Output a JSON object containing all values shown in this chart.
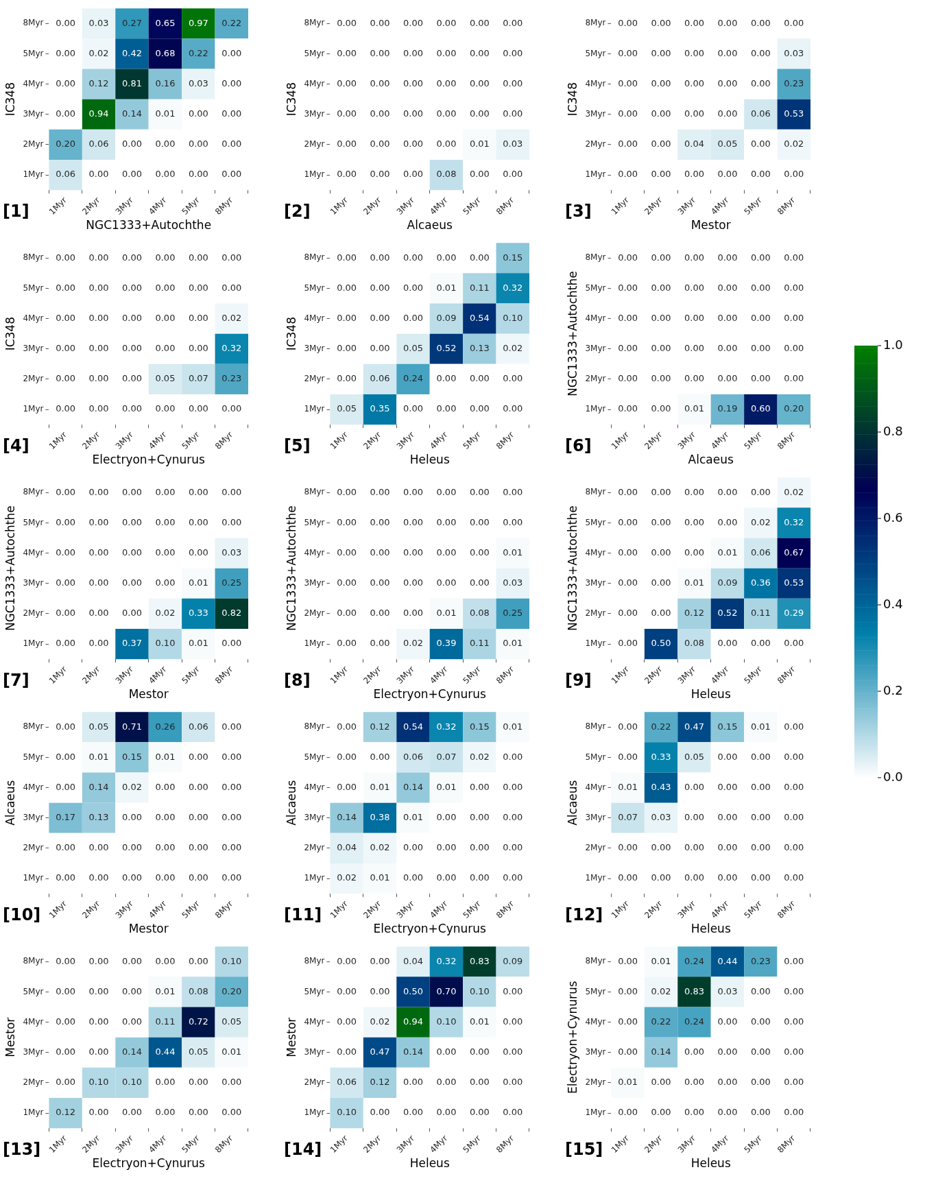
{
  "chart_data": [
    {
      "type": "heatmap",
      "ylabel": "IC348",
      "xlabel": "NGC1333+Autochthe",
      "annotations": [
        "[1]"
      ],
      "categories": [
        "1Myr",
        "2Myr",
        "3Myr",
        "4Myr",
        "5Myr",
        "8Myr"
      ],
      "y_categories": [
        "8Myr",
        "5Myr",
        "4Myr",
        "3Myr",
        "2Myr",
        "1Myr"
      ],
      "cells": [
        [
          0.0,
          0.03,
          0.27,
          0.65,
          0.97,
          0.22
        ],
        [
          0.0,
          0.02,
          0.42,
          0.68,
          0.22,
          0.0
        ],
        [
          0.0,
          0.12,
          0.81,
          0.16,
          0.03,
          0.0
        ],
        [
          0.0,
          0.94,
          0.14,
          0.01,
          0.0,
          0.0
        ],
        [
          0.2,
          0.06,
          0.0,
          0.0,
          0.0,
          0.0
        ],
        [
          0.06,
          0.0,
          0.0,
          0.0,
          0.0,
          0.0
        ]
      ],
      "cell_labels": [
        [
          "0.00",
          "0.03",
          "0.27",
          "0.65",
          "0.97",
          "0.22"
        ],
        [
          "0.00",
          "0.02",
          "0.42",
          "0.68",
          "0.22",
          "0.00"
        ],
        [
          "0.00",
          "0.12",
          "0.81",
          "0.16",
          "0.03",
          "0.00"
        ],
        [
          "0.00",
          "0.94",
          "0.14",
          "0.01",
          "0.00",
          "0.00"
        ],
        [
          "0.20",
          "0.06",
          "0.00",
          "0.00",
          "0.00",
          "0.00"
        ],
        [
          "0.06",
          "0.00",
          "0.00",
          "0.00",
          "0.00",
          "0.00"
        ]
      ]
    },
    {
      "type": "heatmap",
      "ylabel": "IC348",
      "xlabel": "Alcaeus",
      "annotations": [
        "[2]"
      ],
      "categories": [
        "1Myr",
        "2Myr",
        "3Myr",
        "4Myr",
        "5Myr",
        "8Myr"
      ],
      "y_categories": [
        "8Myr",
        "5Myr",
        "4Myr",
        "3Myr",
        "2Myr",
        "1Myr"
      ],
      "cells": [
        [
          0.0,
          0.0,
          0.0,
          0.0,
          0.0,
          0.0
        ],
        [
          0.0,
          0.0,
          0.0,
          0.0,
          0.0,
          0.0
        ],
        [
          0.0,
          0.0,
          0.0,
          0.0,
          0.0,
          0.0
        ],
        [
          0.0,
          0.0,
          0.0,
          0.0,
          0.0,
          0.0
        ],
        [
          0.0,
          0.0,
          0.0,
          0.0,
          0.01,
          0.03
        ],
        [
          0.0,
          0.0,
          0.0,
          0.08,
          0.0,
          0.0
        ]
      ],
      "cell_labels": [
        [
          "0.00",
          "0.00",
          "0.00",
          "0.00",
          "0.00",
          "0.00"
        ],
        [
          "0.00",
          "0.00",
          "0.00",
          "0.00",
          "0.00",
          "0.00"
        ],
        [
          "0.00",
          "0.00",
          "0.00",
          "0.00",
          "0.00",
          "0.00"
        ],
        [
          "0.00",
          "0.00",
          "0.00",
          "0.00",
          "0.00",
          "0.00"
        ],
        [
          "0.00",
          "0.00",
          "0.00",
          "0.00",
          "0.01",
          "0.03"
        ],
        [
          "0.00",
          "0.00",
          "0.00",
          "0.08",
          "0.00",
          "0.00"
        ]
      ]
    },
    {
      "type": "heatmap",
      "ylabel": "IC348",
      "xlabel": "Mestor",
      "annotations": [
        "[3]"
      ],
      "categories": [
        "1Myr",
        "2Myr",
        "3Myr",
        "4Myr",
        "5Myr",
        "8Myr"
      ],
      "y_categories": [
        "8Myr",
        "5Myr",
        "4Myr",
        "3Myr",
        "2Myr",
        "1Myr"
      ],
      "cells": [
        [
          0.0,
          0.0,
          0.0,
          0.0,
          0.0,
          0.0
        ],
        [
          0.0,
          0.0,
          0.0,
          0.0,
          0.0,
          0.03
        ],
        [
          0.0,
          0.0,
          0.0,
          0.0,
          0.0,
          0.23
        ],
        [
          0.0,
          0.0,
          0.0,
          0.0,
          0.06,
          0.53
        ],
        [
          0.0,
          0.0,
          0.04,
          0.05,
          0.0,
          0.02
        ],
        [
          0.0,
          0.0,
          0.0,
          0.0,
          0.0,
          0.0
        ]
      ],
      "cell_labels": [
        [
          "0.00",
          "0.00",
          "0.00",
          "0.00",
          "0.00",
          "0.00"
        ],
        [
          "0.00",
          "0.00",
          "0.00",
          "0.00",
          "0.00",
          "0.03"
        ],
        [
          "0.00",
          "0.00",
          "0.00",
          "0.00",
          "0.00",
          "0.23"
        ],
        [
          "0.00",
          "0.00",
          "0.00",
          "0.00",
          "0.06",
          "0.53"
        ],
        [
          "0.00",
          "0.00",
          "0.04",
          "0.05",
          "0.00",
          "0.02"
        ],
        [
          "0.00",
          "0.00",
          "0.00",
          "0.00",
          "0.00",
          "0.00"
        ]
      ]
    },
    {
      "type": "heatmap",
      "ylabel": "IC348",
      "xlabel": "Electryon+Cynurus",
      "annotations": [
        "[4]"
      ],
      "categories": [
        "1Myr",
        "2Myr",
        "3Myr",
        "4Myr",
        "5Myr",
        "8Myr"
      ],
      "y_categories": [
        "8Myr",
        "5Myr",
        "4Myr",
        "3Myr",
        "2Myr",
        "1Myr"
      ],
      "cells": [
        [
          0.0,
          0.0,
          0.0,
          0.0,
          0.0,
          0.0
        ],
        [
          0.0,
          0.0,
          0.0,
          0.0,
          0.0,
          0.0
        ],
        [
          0.0,
          0.0,
          0.0,
          0.0,
          0.0,
          0.02
        ],
        [
          0.0,
          0.0,
          0.0,
          0.0,
          0.0,
          0.32
        ],
        [
          0.0,
          0.0,
          0.0,
          0.05,
          0.07,
          0.23
        ],
        [
          0.0,
          0.0,
          0.0,
          0.0,
          0.0,
          0.0
        ]
      ],
      "cell_labels": [
        [
          "0.00",
          "0.00",
          "0.00",
          "0.00",
          "0.00",
          "0.00"
        ],
        [
          "0.00",
          "0.00",
          "0.00",
          "0.00",
          "0.00",
          "0.00"
        ],
        [
          "0.00",
          "0.00",
          "0.00",
          "0.00",
          "0.00",
          "0.02"
        ],
        [
          "0.00",
          "0.00",
          "0.00",
          "0.00",
          "0.00",
          "0.32"
        ],
        [
          "0.00",
          "0.00",
          "0.00",
          "0.05",
          "0.07",
          "0.23"
        ],
        [
          "0.00",
          "0.00",
          "0.00",
          "0.00",
          "0.00",
          "0.00"
        ]
      ]
    },
    {
      "type": "heatmap",
      "ylabel": "IC348",
      "xlabel": "Heleus",
      "annotations": [
        "[5]"
      ],
      "categories": [
        "1Myr",
        "2Myr",
        "3Myr",
        "4Myr",
        "5Myr",
        "8Myr"
      ],
      "y_categories": [
        "8Myr",
        "5Myr",
        "4Myr",
        "3Myr",
        "2Myr",
        "1Myr"
      ],
      "cells": [
        [
          0.0,
          0.0,
          0.0,
          0.0,
          0.0,
          0.15
        ],
        [
          0.0,
          0.0,
          0.0,
          0.01,
          0.11,
          0.32
        ],
        [
          0.0,
          0.0,
          0.0,
          0.09,
          0.54,
          0.1
        ],
        [
          0.0,
          0.0,
          0.05,
          0.52,
          0.13,
          0.02
        ],
        [
          0.0,
          0.06,
          0.24,
          0.0,
          0.0,
          0.0
        ],
        [
          0.05,
          0.35,
          0.0,
          0.0,
          0.0,
          0.0
        ]
      ],
      "cell_labels": [
        [
          "0.00",
          "0.00",
          "0.00",
          "0.00",
          "0.00",
          "0.15"
        ],
        [
          "0.00",
          "0.00",
          "0.00",
          "0.01",
          "0.11",
          "0.32"
        ],
        [
          "0.00",
          "0.00",
          "0.00",
          "0.09",
          "0.54",
          "0.10"
        ],
        [
          "0.00",
          "0.00",
          "0.05",
          "0.52",
          "0.13",
          "0.02"
        ],
        [
          "0.00",
          "0.06",
          "0.24",
          "0.00",
          "0.00",
          "0.00"
        ],
        [
          "0.05",
          "0.35",
          "0.00",
          "0.00",
          "0.00",
          "0.00"
        ]
      ]
    },
    {
      "type": "heatmap",
      "ylabel": "NGC1333+Autochthe",
      "xlabel": "Alcaeus",
      "annotations": [
        "[6]"
      ],
      "categories": [
        "1Myr",
        "2Myr",
        "3Myr",
        "4Myr",
        "5Myr",
        "8Myr"
      ],
      "y_categories": [
        "8Myr",
        "5Myr",
        "4Myr",
        "3Myr",
        "2Myr",
        "1Myr"
      ],
      "clim": [
        0,
        1
      ],
      "cticks": [
        {
          "value": 0,
          "label": "0.0"
        },
        0.2,
        0.4,
        0.6,
        0.8,
        {
          "value": 1,
          "label": "1.0"
        }
      ],
      "cells": [
        [
          0.0,
          0.0,
          0.0,
          0.0,
          0.0,
          0.0
        ],
        [
          0.0,
          0.0,
          0.0,
          0.0,
          0.0,
          0.0
        ],
        [
          0.0,
          0.0,
          0.0,
          0.0,
          0.0,
          0.0
        ],
        [
          0.0,
          0.0,
          0.0,
          0.0,
          0.0,
          0.0
        ],
        [
          0.0,
          0.0,
          0.0,
          0.0,
          0.0,
          0.0
        ],
        [
          0.0,
          0.0,
          0.01,
          0.19,
          0.6,
          0.2
        ]
      ],
      "cell_labels": [
        [
          "0.00",
          "0.00",
          "0.00",
          "0.00",
          "0.00",
          "0.00"
        ],
        [
          "0.00",
          "0.00",
          "0.00",
          "0.00",
          "0.00",
          "0.00"
        ],
        [
          "0.00",
          "0.00",
          "0.00",
          "0.00",
          "0.00",
          "0.00"
        ],
        [
          "0.00",
          "0.00",
          "0.00",
          "0.00",
          "0.00",
          "0.00"
        ],
        [
          "0.00",
          "0.00",
          "0.00",
          "0.00",
          "0.00",
          "0.00"
        ],
        [
          "0.00",
          "0.00",
          "0.01",
          "0.19",
          "0.60",
          "0.20"
        ]
      ]
    },
    {
      "type": "heatmap",
      "ylabel": "NGC1333+Autochthe",
      "xlabel": "Mestor",
      "annotations": [
        "[7]"
      ],
      "categories": [
        "1Myr",
        "2Myr",
        "3Myr",
        "4Myr",
        "5Myr",
        "8Myr"
      ],
      "y_categories": [
        "8Myr",
        "5Myr",
        "4Myr",
        "3Myr",
        "2Myr",
        "1Myr"
      ],
      "cells": [
        [
          0.0,
          0.0,
          0.0,
          0.0,
          0.0,
          0.0
        ],
        [
          0.0,
          0.0,
          0.0,
          0.0,
          0.0,
          0.0
        ],
        [
          0.0,
          0.0,
          0.0,
          0.0,
          0.0,
          0.03
        ],
        [
          0.0,
          0.0,
          0.0,
          0.0,
          0.01,
          0.25
        ],
        [
          0.0,
          0.0,
          0.0,
          0.02,
          0.33,
          0.82
        ],
        [
          0.0,
          0.0,
          0.37,
          0.1,
          0.01,
          0.0
        ]
      ],
      "cell_labels": [
        [
          "0.00",
          "0.00",
          "0.00",
          "0.00",
          "0.00",
          "0.00"
        ],
        [
          "0.00",
          "0.00",
          "0.00",
          "0.00",
          "0.00",
          "0.00"
        ],
        [
          "0.00",
          "0.00",
          "0.00",
          "0.00",
          "0.00",
          "0.03"
        ],
        [
          "0.00",
          "0.00",
          "0.00",
          "0.00",
          "0.01",
          "0.25"
        ],
        [
          "0.00",
          "0.00",
          "0.00",
          "0.02",
          "0.33",
          "0.82"
        ],
        [
          "0.00",
          "0.00",
          "0.37",
          "0.10",
          "0.01",
          "0.00"
        ]
      ]
    },
    {
      "type": "heatmap",
      "ylabel": "NGC1333+Autochthe",
      "xlabel": "Electryon+Cynurus",
      "annotations": [
        "[8]"
      ],
      "categories": [
        "1Myr",
        "2Myr",
        "3Myr",
        "4Myr",
        "5Myr",
        "8Myr"
      ],
      "y_categories": [
        "8Myr",
        "5Myr",
        "4Myr",
        "3Myr",
        "2Myr",
        "1Myr"
      ],
      "cells": [
        [
          0.0,
          0.0,
          0.0,
          0.0,
          0.0,
          0.0
        ],
        [
          0.0,
          0.0,
          0.0,
          0.0,
          0.0,
          0.0
        ],
        [
          0.0,
          0.0,
          0.0,
          0.0,
          0.0,
          0.01
        ],
        [
          0.0,
          0.0,
          0.0,
          0.0,
          0.0,
          0.03
        ],
        [
          0.0,
          0.0,
          0.0,
          0.01,
          0.08,
          0.25
        ],
        [
          0.0,
          0.0,
          0.02,
          0.39,
          0.11,
          0.01
        ]
      ],
      "cell_labels": [
        [
          "0.00",
          "0.00",
          "0.00",
          "0.00",
          "0.00",
          "0.00"
        ],
        [
          "0.00",
          "0.00",
          "0.00",
          "0.00",
          "0.00",
          "0.00"
        ],
        [
          "0.00",
          "0.00",
          "0.00",
          "0.00",
          "0.00",
          "0.01"
        ],
        [
          "0.00",
          "0.00",
          "0.00",
          "0.00",
          "0.00",
          "0.03"
        ],
        [
          "0.00",
          "0.00",
          "0.00",
          "0.01",
          "0.08",
          "0.25"
        ],
        [
          "0.00",
          "0.00",
          "0.02",
          "0.39",
          "0.11",
          "0.01"
        ]
      ]
    },
    {
      "type": "heatmap",
      "ylabel": "NGC1333+Autochthe",
      "xlabel": "Heleus",
      "annotations": [
        "[9]"
      ],
      "categories": [
        "1Myr",
        "2Myr",
        "3Myr",
        "4Myr",
        "5Myr",
        "8Myr"
      ],
      "y_categories": [
        "8Myr",
        "5Myr",
        "4Myr",
        "3Myr",
        "2Myr",
        "1Myr"
      ],
      "cells": [
        [
          0.0,
          0.0,
          0.0,
          0.0,
          0.0,
          0.02
        ],
        [
          0.0,
          0.0,
          0.0,
          0.0,
          0.02,
          0.32
        ],
        [
          0.0,
          0.0,
          0.0,
          0.01,
          0.06,
          0.67
        ],
        [
          0.0,
          0.0,
          0.01,
          0.09,
          0.36,
          0.53
        ],
        [
          0.0,
          0.0,
          0.12,
          0.52,
          0.11,
          0.29
        ],
        [
          0.0,
          0.5,
          0.08,
          0.0,
          0.0,
          0.0
        ]
      ],
      "cell_labels": [
        [
          "0.00",
          "0.00",
          "0.00",
          "0.00",
          "0.00",
          "0.02"
        ],
        [
          "0.00",
          "0.00",
          "0.00",
          "0.00",
          "0.02",
          "0.32"
        ],
        [
          "0.00",
          "0.00",
          "0.00",
          "0.01",
          "0.06",
          "0.67"
        ],
        [
          "0.00",
          "0.00",
          "0.01",
          "0.09",
          "0.36",
          "0.53"
        ],
        [
          "0.00",
          "0.00",
          "0.12",
          "0.52",
          "0.11",
          "0.29"
        ],
        [
          "0.00",
          "0.50",
          "0.08",
          "0.00",
          "0.00",
          "0.00"
        ]
      ]
    },
    {
      "type": "heatmap",
      "ylabel": "Alcaeus",
      "xlabel": "Mestor",
      "annotations": [
        "[10]"
      ],
      "categories": [
        "1Myr",
        "2Myr",
        "3Myr",
        "4Myr",
        "5Myr",
        "8Myr"
      ],
      "y_categories": [
        "8Myr",
        "5Myr",
        "4Myr",
        "3Myr",
        "2Myr",
        "1Myr"
      ],
      "cells": [
        [
          0.0,
          0.05,
          0.71,
          0.26,
          0.06,
          0.0
        ],
        [
          0.0,
          0.01,
          0.15,
          0.01,
          0.0,
          0.0
        ],
        [
          0.0,
          0.14,
          0.02,
          0.0,
          0.0,
          0.0
        ],
        [
          0.17,
          0.13,
          0.0,
          0.0,
          0.0,
          0.0
        ],
        [
          0.0,
          0.0,
          0.0,
          0.0,
          0.0,
          0.0
        ],
        [
          0.0,
          0.0,
          0.0,
          0.0,
          0.0,
          0.0
        ]
      ],
      "cell_labels": [
        [
          "0.00",
          "0.05",
          "0.71",
          "0.26",
          "0.06",
          "0.00"
        ],
        [
          "0.00",
          "0.01",
          "0.15",
          "0.01",
          "0.00",
          "0.00"
        ],
        [
          "0.00",
          "0.14",
          "0.02",
          "0.00",
          "0.00",
          "0.00"
        ],
        [
          "0.17",
          "0.13",
          "0.00",
          "0.00",
          "0.00",
          "0.00"
        ],
        [
          "0.00",
          "0.00",
          "0.00",
          "0.00",
          "0.00",
          "0.00"
        ],
        [
          "0.00",
          "0.00",
          "0.00",
          "0.00",
          "0.00",
          "0.00"
        ]
      ]
    },
    {
      "type": "heatmap",
      "ylabel": "Alcaeus",
      "xlabel": "Electryon+Cynurus",
      "annotations": [
        "[11]"
      ],
      "categories": [
        "1Myr",
        "2Myr",
        "3Myr",
        "4Myr",
        "5Myr",
        "8Myr"
      ],
      "y_categories": [
        "8Myr",
        "5Myr",
        "4Myr",
        "3Myr",
        "2Myr",
        "1Myr"
      ],
      "cells": [
        [
          0.0,
          0.12,
          0.54,
          0.32,
          0.15,
          0.01
        ],
        [
          0.0,
          0.0,
          0.06,
          0.07,
          0.02,
          0.0
        ],
        [
          0.0,
          0.01,
          0.14,
          0.01,
          0.0,
          0.0
        ],
        [
          0.14,
          0.38,
          0.01,
          0.0,
          0.0,
          0.0
        ],
        [
          0.04,
          0.02,
          0.0,
          0.0,
          0.0,
          0.0
        ],
        [
          0.02,
          0.01,
          0.0,
          0.0,
          0.0,
          0.0
        ]
      ],
      "cell_labels": [
        [
          "0.00",
          "0.12",
          "0.54",
          "0.32",
          "0.15",
          "0.01"
        ],
        [
          "0.00",
          "0.00",
          "0.06",
          "0.07",
          "0.02",
          "0.00"
        ],
        [
          "0.00",
          "0.01",
          "0.14",
          "0.01",
          "0.00",
          "0.00"
        ],
        [
          "0.14",
          "0.38",
          "0.01",
          "0.00",
          "0.00",
          "0.00"
        ],
        [
          "0.04",
          "0.02",
          "0.00",
          "0.00",
          "0.00",
          "0.00"
        ],
        [
          "0.02",
          "0.01",
          "0.00",
          "0.00",
          "0.00",
          "0.00"
        ]
      ]
    },
    {
      "type": "heatmap",
      "ylabel": "Alcaeus",
      "xlabel": "Heleus",
      "annotations": [
        "[12]"
      ],
      "categories": [
        "1Myr",
        "2Myr",
        "3Myr",
        "4Myr",
        "5Myr",
        "8Myr"
      ],
      "y_categories": [
        "8Myr",
        "5Myr",
        "4Myr",
        "3Myr",
        "2Myr",
        "1Myr"
      ],
      "cells": [
        [
          0.0,
          0.22,
          0.47,
          0.15,
          0.01,
          0.0
        ],
        [
          0.0,
          0.33,
          0.05,
          0.0,
          0.0,
          0.0
        ],
        [
          0.01,
          0.43,
          0.0,
          0.0,
          0.0,
          0.0
        ],
        [
          0.07,
          0.03,
          0.0,
          0.0,
          0.0,
          0.0
        ],
        [
          0.0,
          0.0,
          0.0,
          0.0,
          0.0,
          0.0
        ],
        [
          0.0,
          0.0,
          0.0,
          0.0,
          0.0,
          0.0
        ]
      ],
      "cell_labels": [
        [
          "0.00",
          "0.22",
          "0.47",
          "0.15",
          "0.01",
          "0.00"
        ],
        [
          "0.00",
          "0.33",
          "0.05",
          "0.00",
          "0.00",
          "0.00"
        ],
        [
          "0.01",
          "0.43",
          "0.00",
          "0.00",
          "0.00",
          "0.00"
        ],
        [
          "0.07",
          "0.03",
          "0.00",
          "0.00",
          "0.00",
          "0.00"
        ],
        [
          "0.00",
          "0.00",
          "0.00",
          "0.00",
          "0.00",
          "0.00"
        ],
        [
          "0.00",
          "0.00",
          "0.00",
          "0.00",
          "0.00",
          "0.00"
        ]
      ]
    },
    {
      "type": "heatmap",
      "ylabel": "Mestor",
      "xlabel": "Electryon+Cynurus",
      "annotations": [
        "[13]"
      ],
      "categories": [
        "1Myr",
        "2Myr",
        "3Myr",
        "4Myr",
        "5Myr",
        "8Myr"
      ],
      "y_categories": [
        "8Myr",
        "5Myr",
        "4Myr",
        "3Myr",
        "2Myr",
        "1Myr"
      ],
      "cells": [
        [
          0.0,
          0.0,
          0.0,
          0.0,
          0.0,
          0.1
        ],
        [
          0.0,
          0.0,
          0.0,
          0.01,
          0.08,
          0.2
        ],
        [
          0.0,
          0.0,
          0.0,
          0.11,
          0.72,
          0.05
        ],
        [
          0.0,
          0.0,
          0.14,
          0.44,
          0.05,
          0.01
        ],
        [
          0.0,
          0.1,
          0.1,
          0.0,
          0.0,
          0.0
        ],
        [
          0.12,
          0.0,
          0.0,
          0.0,
          0.0,
          0.0
        ]
      ],
      "cell_labels": [
        [
          "0.00",
          "0.00",
          "0.00",
          "0.00",
          "0.00",
          "0.10"
        ],
        [
          "0.00",
          "0.00",
          "0.00",
          "0.01",
          "0.08",
          "0.20"
        ],
        [
          "0.00",
          "0.00",
          "0.00",
          "0.11",
          "0.72",
          "0.05"
        ],
        [
          "0.00",
          "0.00",
          "0.14",
          "0.44",
          "0.05",
          "0.01"
        ],
        [
          "0.00",
          "0.10",
          "0.10",
          "0.00",
          "0.00",
          "0.00"
        ],
        [
          "0.12",
          "0.00",
          "0.00",
          "0.00",
          "0.00",
          "0.00"
        ]
      ]
    },
    {
      "type": "heatmap",
      "ylabel": "Mestor",
      "xlabel": "Heleus",
      "annotations": [
        "[14]"
      ],
      "categories": [
        "1Myr",
        "2Myr",
        "3Myr",
        "4Myr",
        "5Myr",
        "8Myr"
      ],
      "y_categories": [
        "8Myr",
        "5Myr",
        "4Myr",
        "3Myr",
        "2Myr",
        "1Myr"
      ],
      "cells": [
        [
          0.0,
          0.0,
          0.04,
          0.32,
          0.83,
          0.09
        ],
        [
          0.0,
          0.0,
          0.5,
          0.7,
          0.1,
          0.0
        ],
        [
          0.0,
          0.02,
          0.94,
          0.1,
          0.01,
          0.0
        ],
        [
          0.0,
          0.47,
          0.14,
          0.0,
          0.0,
          0.0
        ],
        [
          0.06,
          0.12,
          0.0,
          0.0,
          0.0,
          0.0
        ],
        [
          0.1,
          0.0,
          0.0,
          0.0,
          0.0,
          0.0
        ]
      ],
      "cell_labels": [
        [
          "0.00",
          "0.00",
          "0.04",
          "0.32",
          "0.83",
          "0.09"
        ],
        [
          "0.00",
          "0.00",
          "0.50",
          "0.70",
          "0.10",
          "0.00"
        ],
        [
          "0.00",
          "0.02",
          "0.94",
          "0.10",
          "0.01",
          "0.00"
        ],
        [
          "0.00",
          "0.47",
          "0.14",
          "0.00",
          "0.00",
          "0.00"
        ],
        [
          "0.06",
          "0.12",
          "0.00",
          "0.00",
          "0.00",
          "0.00"
        ],
        [
          "0.10",
          "0.00",
          "0.00",
          "0.00",
          "0.00",
          "0.00"
        ]
      ]
    },
    {
      "type": "heatmap",
      "ylabel": "Electryon+Cynurus",
      "xlabel": "Heleus",
      "annotations": [
        "[15]"
      ],
      "categories": [
        "1Myr",
        "2Myr",
        "3Myr",
        "4Myr",
        "5Myr",
        "8Myr"
      ],
      "y_categories": [
        "8Myr",
        "5Myr",
        "4Myr",
        "3Myr",
        "2Myr",
        "1Myr"
      ],
      "cells": [
        [
          0.0,
          0.01,
          0.24,
          0.44,
          0.23,
          0.0
        ],
        [
          0.0,
          0.02,
          0.83,
          0.03,
          0.0,
          0.0
        ],
        [
          0.0,
          0.22,
          0.24,
          0.0,
          0.0,
          0.0
        ],
        [
          0.0,
          0.14,
          0.0,
          0.0,
          0.0,
          0.0
        ],
        [
          0.01,
          0.0,
          0.0,
          0.0,
          0.0,
          0.0
        ],
        [
          0.0,
          0.0,
          0.0,
          0.0,
          0.0,
          0.0
        ]
      ],
      "cell_labels": [
        [
          "0.00",
          "0.01",
          "0.24",
          "0.44",
          "0.23",
          "0.00"
        ],
        [
          "0.00",
          "0.02",
          "0.83",
          "0.03",
          "0.00",
          "0.00"
        ],
        [
          "0.00",
          "0.22",
          "0.24",
          "0.00",
          "0.00",
          "0.00"
        ],
        [
          "0.00",
          "0.14",
          "0.00",
          "0.00",
          "0.00",
          "0.00"
        ],
        [
          "0.01",
          "0.00",
          "0.00",
          "0.00",
          "0.00",
          "0.00"
        ],
        [
          "0.00",
          "0.00",
          "0.00",
          "0.00",
          "0.00",
          "0.00"
        ]
      ]
    }
  ]
}
